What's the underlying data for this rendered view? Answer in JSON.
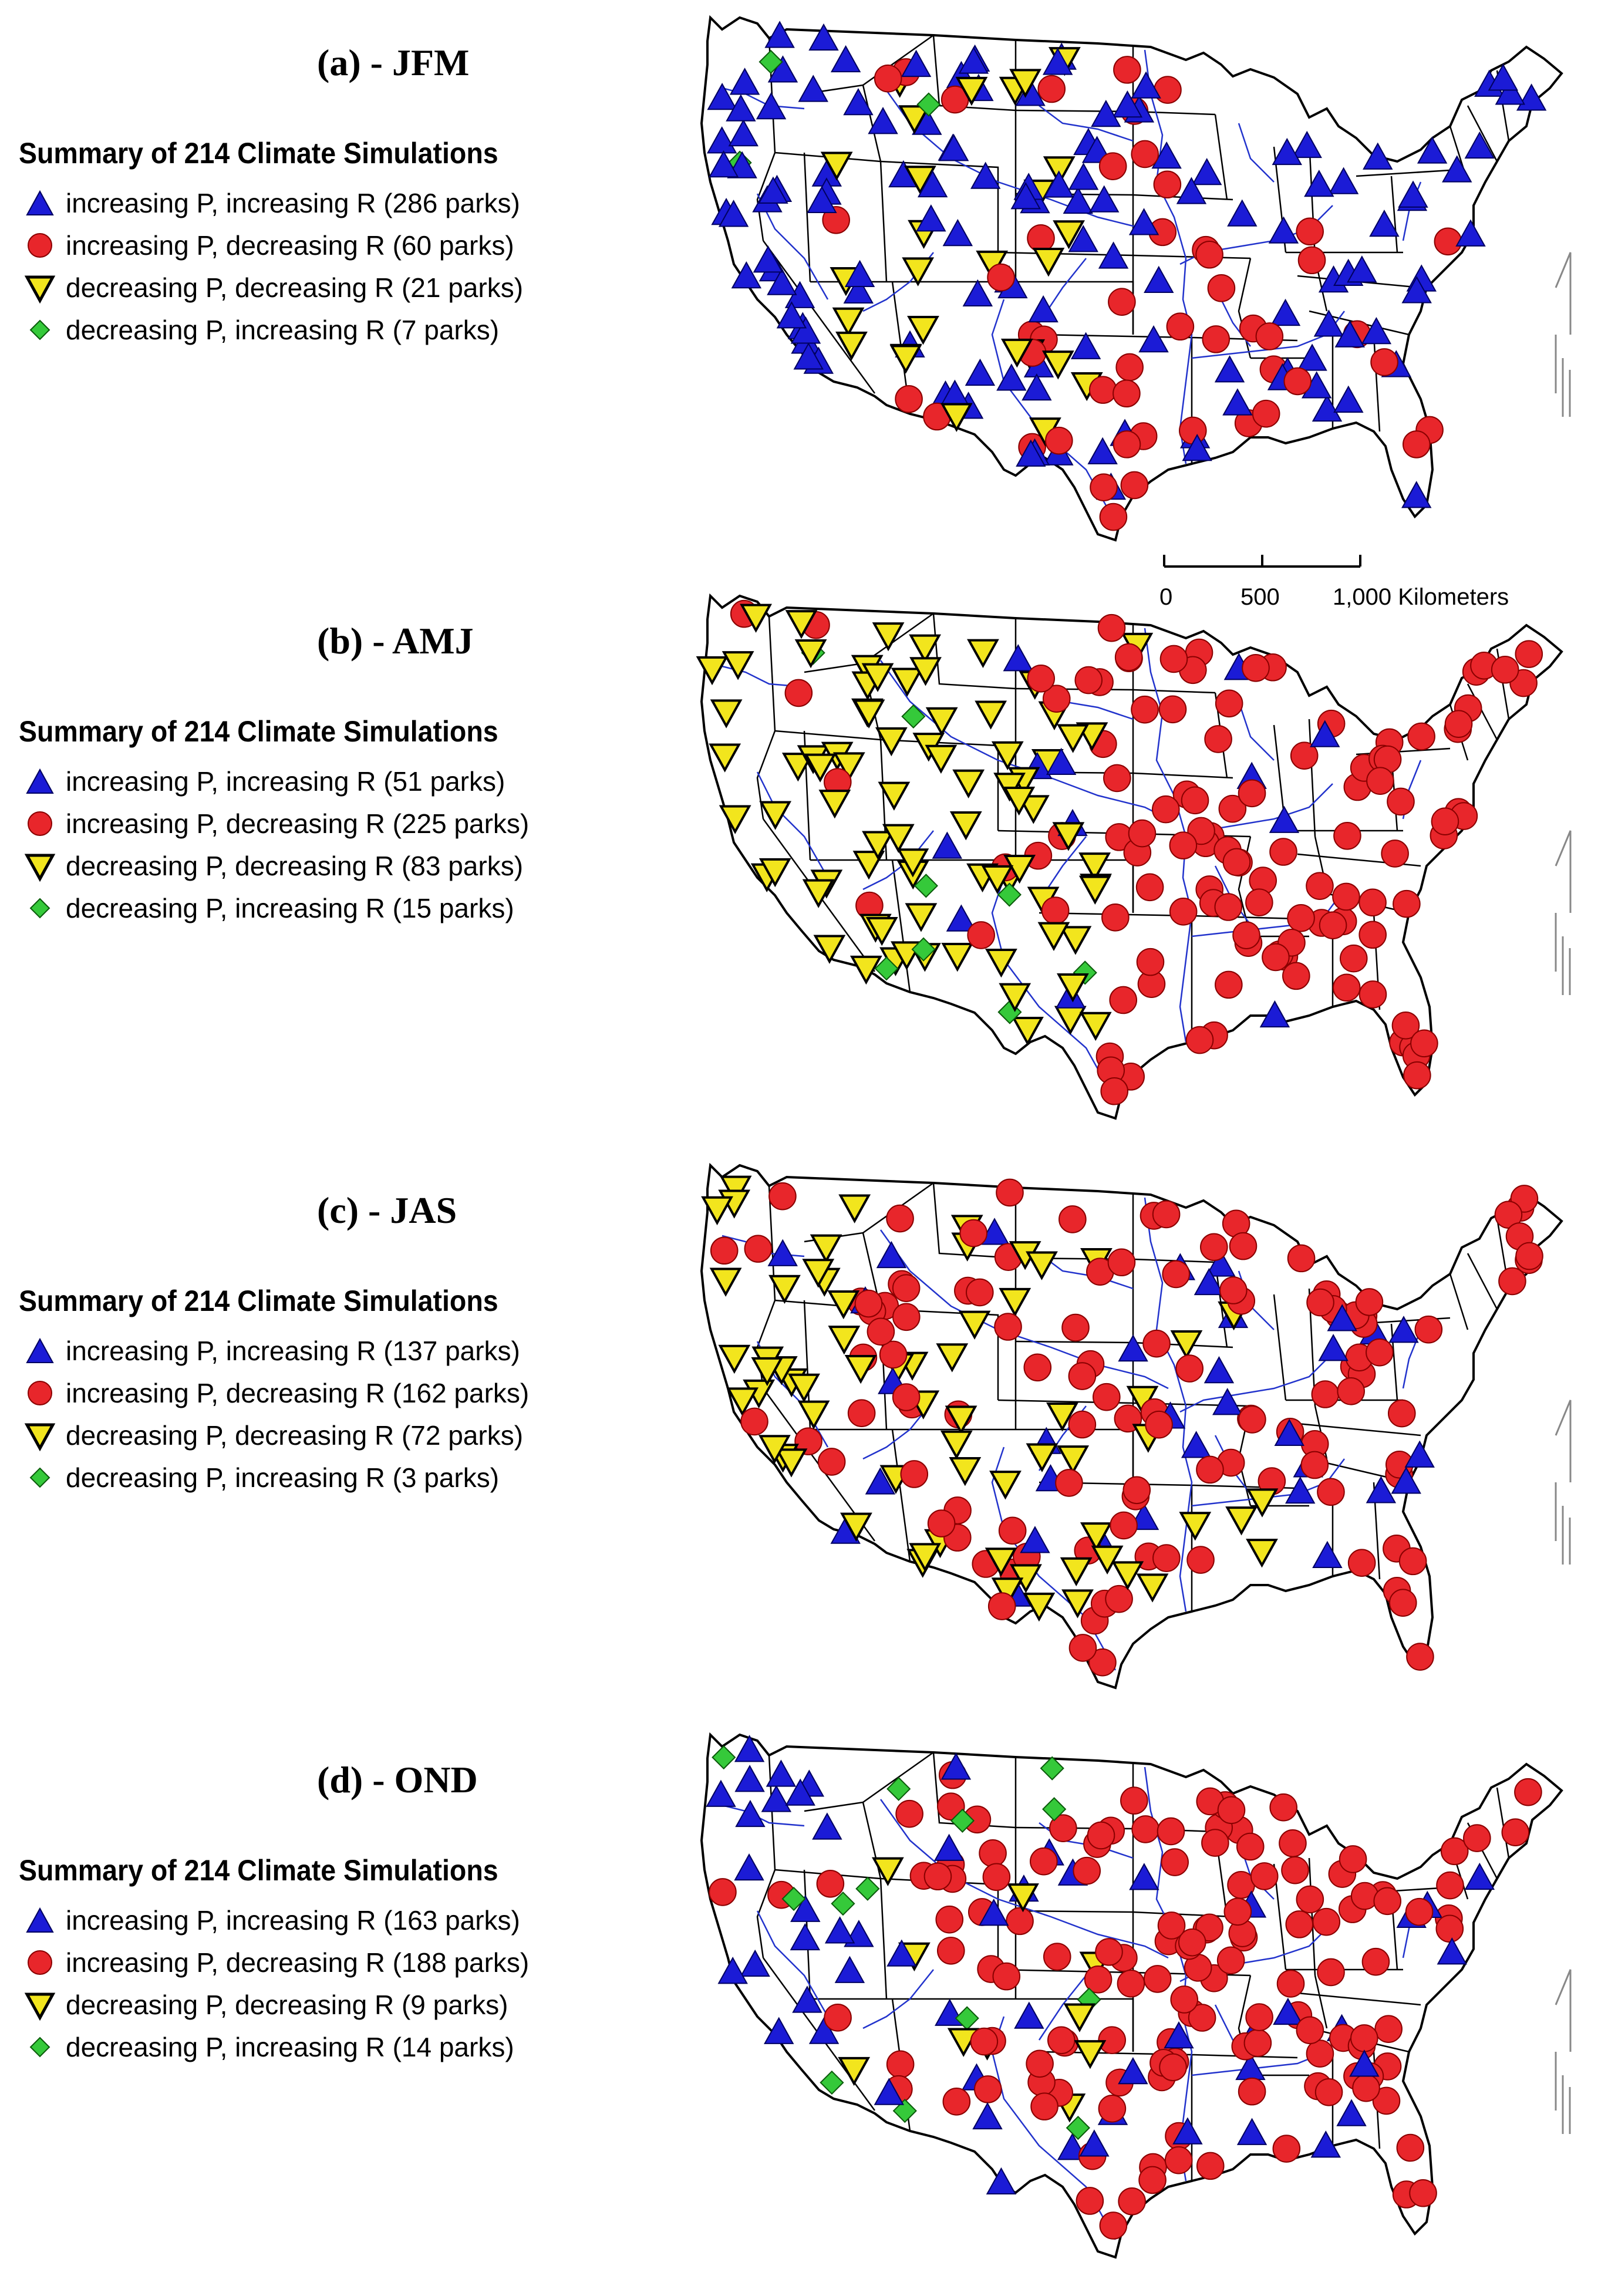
{
  "scale_bar": {
    "labels": [
      "0",
      "500",
      "1,000 Kilometers"
    ]
  },
  "marker_styles": {
    "increasing_p_increasing_r": {
      "shape": "triangle-up",
      "color": "#1b1bd6"
    },
    "increasing_p_decreasing_r": {
      "shape": "circle",
      "color": "#e8262b"
    },
    "decreasing_p_decreasing_r": {
      "shape": "triangle-down",
      "color": "#f2e51d"
    },
    "decreasing_p_increasing_r": {
      "shape": "diamond",
      "color": "#35c93a"
    }
  },
  "panels": [
    {
      "title": "(a) - JFM",
      "summary_title": "Summary of 214 Climate Simulations",
      "legend": [
        {
          "key": "increasing_p_increasing_r",
          "label": "increasing P, increasing R (286 parks)"
        },
        {
          "key": "increasing_p_decreasing_r",
          "label": "increasing P, decreasing R (60 parks)"
        },
        {
          "key": "decreasing_p_decreasing_r",
          "label": "decreasing P, decreasing R (21 parks)"
        },
        {
          "key": "decreasing_p_increasing_r",
          "label": "decreasing P, increasing R (7 parks)"
        }
      ]
    },
    {
      "title": "(b) - AMJ",
      "summary_title": "Summary of 214 Climate Simulations",
      "legend": [
        {
          "key": "increasing_p_increasing_r",
          "label": "increasing P, increasing R (51 parks)"
        },
        {
          "key": "increasing_p_decreasing_r",
          "label": "increasing P, decreasing R (225 parks)"
        },
        {
          "key": "decreasing_p_decreasing_r",
          "label": "decreasing P, decreasing R (83 parks)"
        },
        {
          "key": "decreasing_p_increasing_r",
          "label": "decreasing P, increasing R (15 parks)"
        }
      ]
    },
    {
      "title": "(c) - JAS",
      "summary_title": "Summary of 214 Climate Simulations",
      "legend": [
        {
          "key": "increasing_p_increasing_r",
          "label": "increasing P, increasing R (137 parks)"
        },
        {
          "key": "increasing_p_decreasing_r",
          "label": "increasing P, decreasing R (162 parks)"
        },
        {
          "key": "decreasing_p_decreasing_r",
          "label": "decreasing P, decreasing R (72 parks)"
        },
        {
          "key": "decreasing_p_increasing_r",
          "label": "decreasing P, increasing R (3 parks)"
        }
      ]
    },
    {
      "title": "(d) - OND",
      "summary_title": "Summary of 214 Climate Simulations",
      "legend": [
        {
          "key": "increasing_p_increasing_r",
          "label": "increasing P, increasing R (163 parks)"
        },
        {
          "key": "increasing_p_decreasing_r",
          "label": "increasing P, decreasing R (188 parks)"
        },
        {
          "key": "decreasing_p_decreasing_r",
          "label": "decreasing P, decreasing R (9 parks)"
        },
        {
          "key": "decreasing_p_increasing_r",
          "label": "decreasing P, increasing R (14 parks)"
        }
      ]
    }
  ]
}
